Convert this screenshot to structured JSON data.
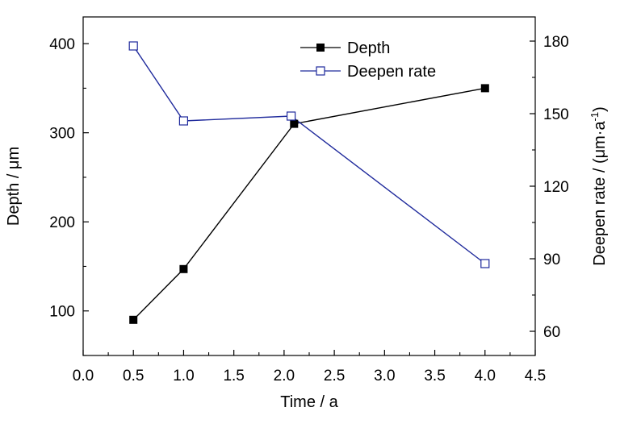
{
  "chart_data": {
    "type": "line",
    "xlabel": "Time / a",
    "ylabel": "Depth / μm",
    "y2label_main": "Deepen rate / (μm·a",
    "y2label_sup": "-1",
    "y2label_close": ")",
    "xlim": [
      0.0,
      4.5
    ],
    "ylim": [
      50,
      430
    ],
    "y2lim": [
      50,
      190
    ],
    "xticks": [
      "0.0",
      "0.5",
      "1.0",
      "1.5",
      "2.0",
      "2.5",
      "3.0",
      "3.5",
      "4.0",
      "4.5"
    ],
    "yticks": [
      "100",
      "200",
      "300",
      "400"
    ],
    "y2ticks": [
      "60",
      "90",
      "120",
      "150",
      "180"
    ],
    "grid": false,
    "legend_position": "top-center",
    "series": [
      {
        "name": "Depth",
        "axis": "left",
        "color": "#000000",
        "marker": "filled-square",
        "x": [
          0.5,
          1.0,
          2.1,
          4.0
        ],
        "y": [
          90,
          147,
          310,
          350
        ]
      },
      {
        "name": "Deepen rate",
        "axis": "right",
        "color": "#1f2a9c",
        "marker": "open-square",
        "x": [
          0.5,
          1.0,
          2.07,
          4.0
        ],
        "y": [
          178,
          147,
          149,
          88
        ]
      }
    ]
  }
}
